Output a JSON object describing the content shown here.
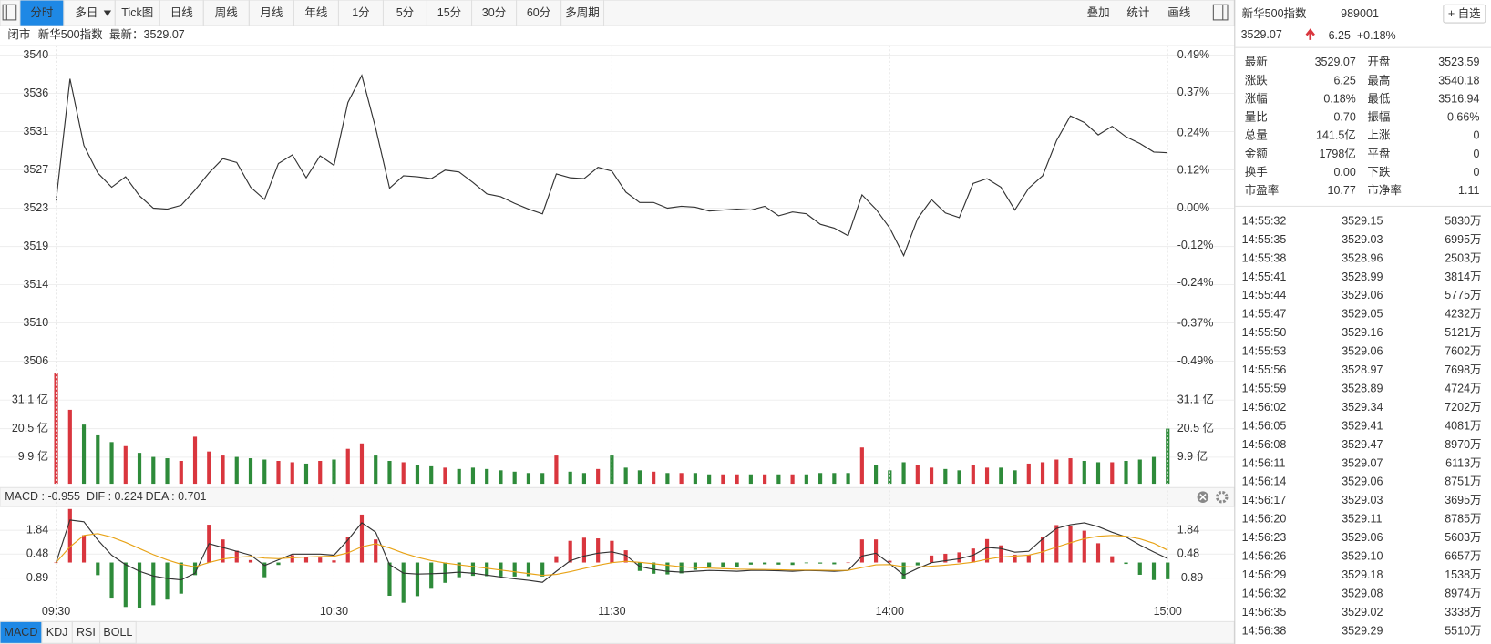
{
  "toolbar": {
    "tabs": [
      "分时",
      "多日",
      "Tick图",
      "日线",
      "周线",
      "月线",
      "年线",
      "1分",
      "5分",
      "15分",
      "30分",
      "60分",
      "多周期"
    ],
    "tools": [
      "叠加",
      "统计",
      "画线"
    ]
  },
  "status": [
    "闭市",
    "新华500指数",
    "最新：3529.07"
  ],
  "indicator_tabs": [
    "MACD",
    "KDJ",
    "RSI",
    "BOLL"
  ],
  "chart_data": [
    {
      "type": "line",
      "xlim": [
        0,
        240
      ],
      "ylim": [
        3505.56,
        3540.08
      ],
      "y2lim": [
        -0.49,
        0.49
      ],
      "yticks": [
        {
          "value": 3505.56,
          "label": "3506"
        },
        {
          "value": 3509.87,
          "label": "3510"
        },
        {
          "value": 3514.19,
          "label": "3514"
        },
        {
          "value": 3518.5,
          "label": "3519"
        },
        {
          "value": 3522.82,
          "label": "3523"
        },
        {
          "value": 3527.14,
          "label": "3527"
        },
        {
          "value": 3531.45,
          "label": "3531"
        },
        {
          "value": 3535.77,
          "label": "3536"
        },
        {
          "value": 3540.08,
          "label": "3540"
        }
      ],
      "y2ticks": [
        {
          "value": -0.49,
          "label": "-0.49%"
        },
        {
          "value": -0.37,
          "label": "-0.37%"
        },
        {
          "value": -0.24,
          "label": "-0.24%"
        },
        {
          "value": -0.12,
          "label": "-0.12%"
        },
        {
          "value": 0,
          "label": "0.00%"
        },
        {
          "value": 0.12,
          "label": "0.12%"
        },
        {
          "value": 0.24,
          "label": "0.24%"
        },
        {
          "value": 0.37,
          "label": "0.37%"
        },
        {
          "value": 0.49,
          "label": "0.49%"
        }
      ],
      "colors": {
        "up": "#d9363e",
        "down": "#2e8b3a"
      },
      "grid": true,
      "x": [
        0,
        3,
        6,
        9,
        12,
        15,
        18,
        21,
        24,
        27,
        30,
        33,
        36,
        39,
        42,
        45,
        48,
        51,
        54,
        57,
        60,
        63,
        66,
        69,
        72,
        75,
        78,
        81,
        84,
        87,
        90,
        93,
        96,
        99,
        102,
        105,
        108,
        111,
        114,
        117,
        120,
        123,
        126,
        129,
        132,
        135,
        138,
        141,
        144,
        147,
        150,
        153,
        156,
        159,
        162,
        165,
        168,
        171,
        174,
        177,
        180,
        183,
        186,
        189,
        192,
        195,
        198,
        201,
        204,
        207,
        210,
        213,
        216,
        219,
        222,
        225,
        228,
        231,
        234,
        237,
        240
      ],
      "series": [
        {
          "color": "#333333",
          "values": [
            3523.68,
            3537.41,
            3529.9,
            3526.79,
            3525.18,
            3526.36,
            3524.21,
            3522.82,
            3522.71,
            3523.14,
            3524.86,
            3526.79,
            3528.4,
            3527.97,
            3525.18,
            3523.79,
            3527.86,
            3528.83,
            3526.25,
            3528.72,
            3527.65,
            3534.73,
            3537.8,
            3531.83,
            3525.07,
            3526.47,
            3526.36,
            3526.15,
            3527.11,
            3526.9,
            3525.72,
            3524.43,
            3524.11,
            3523.36,
            3522.71,
            3522.18,
            3526.68,
            3526.25,
            3526.15,
            3527.43,
            3527.0,
            3524.64,
            3523.46,
            3523.46,
            3522.82,
            3523.03,
            3522.93,
            3522.5,
            3522.61,
            3522.71,
            3522.61,
            3523.03,
            3521.96,
            3522.39,
            3522.18,
            3521.0,
            3520.57,
            3519.71,
            3524.32,
            3522.71,
            3520.57,
            3517.46,
            3521.64,
            3523.79,
            3522.28,
            3521.75,
            3525.61,
            3526.15,
            3525.18,
            3522.61,
            3525.07,
            3526.47,
            3530.44,
            3533.23,
            3532.48,
            3531.08,
            3532.05,
            3530.87,
            3530.12,
            3529.15,
            3529.07
          ]
        }
      ]
    },
    {
      "type": "bar",
      "xlim": [
        0,
        240
      ],
      "ylim": [
        0,
        41
      ],
      "yticks": [
        {
          "value": 9.9,
          "label": "9.9 亿"
        },
        {
          "value": 20.5,
          "label": "20.5 亿"
        },
        {
          "value": 31.1,
          "label": "31.1 亿"
        }
      ],
      "colors": {
        "up": "#d9363e",
        "down": "#2e8b3a"
      },
      "grid": true,
      "x": [
        0,
        3,
        6,
        9,
        12,
        15,
        18,
        21,
        24,
        27,
        30,
        33,
        36,
        39,
        42,
        45,
        48,
        51,
        54,
        57,
        60,
        63,
        66,
        69,
        72,
        75,
        78,
        81,
        84,
        87,
        90,
        93,
        96,
        99,
        102,
        105,
        108,
        111,
        114,
        117,
        120,
        123,
        126,
        129,
        132,
        135,
        138,
        141,
        144,
        147,
        150,
        153,
        156,
        159,
        162,
        165,
        168,
        171,
        174,
        177,
        180,
        183,
        186,
        189,
        192,
        195,
        198,
        201,
        204,
        207,
        210,
        213,
        216,
        219,
        222,
        225,
        228,
        231,
        234,
        237,
        240
      ],
      "series": [
        {
          "values": [
            41,
            27.5,
            22,
            18,
            15.5,
            14,
            11.5,
            10,
            9.5,
            8.5,
            17.5,
            12,
            10.5,
            10,
            9.5,
            9,
            8.5,
            8,
            7.5,
            8.5,
            9,
            13,
            15,
            10.5,
            8.5,
            8,
            7,
            6.5,
            6,
            5.5,
            6,
            5.5,
            5,
            4.5,
            4,
            4,
            10.5,
            4.5,
            4,
            5.5,
            10.5,
            6,
            5,
            4.5,
            4,
            4,
            4,
            3.5,
            3.5,
            3.5,
            3.5,
            3.5,
            3.5,
            3.5,
            3.5,
            4,
            4,
            4,
            13.5,
            7,
            5,
            8,
            7,
            6,
            5.5,
            5,
            7,
            6,
            6,
            5,
            7.5,
            8,
            9,
            9.5,
            8.5,
            8,
            8,
            8.5,
            9,
            10,
            20.5
          ]
        }
      ]
    },
    {
      "type": "line",
      "xlim": [
        0,
        240
      ],
      "ylim": [
        -3.16,
        3.09
      ],
      "yticks": [
        -0.89,
        0.48,
        1.84
      ],
      "xticks": [
        {
          "value": 0,
          "label": "09:30"
        },
        {
          "value": 60,
          "label": "10:30"
        },
        {
          "value": 120,
          "label": "11:30"
        },
        {
          "value": 180,
          "label": "14:00"
        },
        {
          "value": 240,
          "label": "15:00"
        }
      ],
      "colors": {
        "up": "#d9363e",
        "down": "#2e8b3a"
      },
      "grid": true,
      "x": [
        0,
        3,
        6,
        9,
        12,
        15,
        18,
        21,
        24,
        27,
        30,
        33,
        36,
        39,
        42,
        45,
        48,
        51,
        54,
        57,
        60,
        63,
        66,
        69,
        72,
        75,
        78,
        81,
        84,
        87,
        90,
        93,
        96,
        99,
        102,
        105,
        108,
        111,
        114,
        117,
        120,
        123,
        126,
        129,
        132,
        135,
        138,
        141,
        144,
        147,
        150,
        153,
        156,
        159,
        162,
        165,
        168,
        171,
        174,
        177,
        180,
        183,
        186,
        189,
        192,
        195,
        198,
        201,
        204,
        207,
        210,
        213,
        216,
        219,
        222,
        225,
        228,
        231,
        234,
        237,
        240
      ],
      "series": [
        {
          "type": "bar",
          "legend": "MACD : -0.955",
          "color": "#e03bd6",
          "values": [
            0,
            3.06,
            1.56,
            -0.72,
            -2.06,
            -2.54,
            -2.6,
            -2.44,
            -2.12,
            -1.78,
            -0.72,
            2.16,
            1.32,
            0.68,
            0.14,
            -0.84,
            -0.14,
            0.42,
            0.34,
            0.28,
            0.12,
            1.48,
            2.74,
            1.32,
            -1.9,
            -2.3,
            -1.92,
            -1.5,
            -1.16,
            -0.84,
            -0.76,
            -0.78,
            -0.8,
            -0.8,
            -0.78,
            -0.8,
            0.36,
            1.24,
            1.42,
            1.38,
            1.24,
            0.7,
            -0.48,
            -0.64,
            -0.68,
            -0.62,
            -0.42,
            -0.26,
            -0.24,
            -0.24,
            -0.12,
            -0.1,
            -0.12,
            -0.14,
            -0.04,
            -0.06,
            -0.1,
            0,
            1.32,
            1.32,
            0.1,
            -0.96,
            -0.16,
            0.4,
            0.5,
            0.58,
            0.8,
            1.34,
            0.98,
            0.44,
            0.44,
            1.48,
            2.14,
            2.06,
            1.82,
            1.1,
            0.36,
            -0.08,
            -0.7,
            -1.0,
            -0.955
          ]
        },
        {
          "type": "line",
          "legend": "DIF : 0.224",
          "color": "#333333",
          "values": [
            0,
            2.43,
            2.33,
            1.29,
            0.42,
            -0.12,
            -0.5,
            -0.77,
            -0.91,
            -0.99,
            -0.61,
            1.08,
            0.86,
            0.64,
            0.42,
            -0.17,
            0.15,
            0.48,
            0.48,
            0.48,
            0.42,
            1.29,
            2.27,
            1.73,
            -0.12,
            -0.61,
            -0.66,
            -0.64,
            -0.61,
            -0.55,
            -0.61,
            -0.72,
            -0.83,
            -0.93,
            -1.02,
            -1.13,
            -0.5,
            0.1,
            0.37,
            0.53,
            0.61,
            0.42,
            -0.23,
            -0.39,
            -0.5,
            -0.55,
            -0.5,
            -0.45,
            -0.47,
            -0.5,
            -0.45,
            -0.45,
            -0.47,
            -0.5,
            -0.45,
            -0.47,
            -0.5,
            -0.45,
            0.37,
            0.53,
            -0.07,
            -0.72,
            -0.34,
            -0.01,
            0.1,
            0.21,
            0.42,
            0.86,
            0.8,
            0.59,
            0.64,
            1.35,
            1.95,
            2.16,
            2.27,
            2.05,
            1.73,
            1.46,
            1.0,
            0.6,
            0.224
          ]
        },
        {
          "type": "line",
          "legend": "DEA : 0.701",
          "color": "#e8a317",
          "values": [
            0,
            0.9,
            1.55,
            1.65,
            1.45,
            1.15,
            0.8,
            0.45,
            0.15,
            -0.1,
            -0.25,
            0,
            0.2,
            0.3,
            0.35,
            0.25,
            0.22,
            0.27,
            0.31,
            0.34,
            0.36,
            0.55,
            0.9,
            1.07,
            0.83,
            0.54,
            0.3,
            0.11,
            -0.03,
            -0.13,
            -0.23,
            -0.33,
            -0.43,
            -0.53,
            -0.63,
            -0.73,
            -0.68,
            -0.52,
            -0.34,
            -0.16,
            -0.01,
            0.07,
            0.01,
            -0.07,
            -0.16,
            -0.24,
            -0.29,
            -0.32,
            -0.35,
            -0.38,
            -0.39,
            -0.4,
            -0.41,
            -0.43,
            -0.43,
            -0.44,
            -0.45,
            -0.45,
            -0.29,
            -0.13,
            -0.12,
            -0.24,
            -0.26,
            -0.21,
            -0.15,
            -0.08,
            0.02,
            0.19,
            0.31,
            0.37,
            0.42,
            0.61,
            0.88,
            1.13,
            1.36,
            1.5,
            1.55,
            1.5,
            1.35,
            1.1,
            0.701
          ]
        }
      ]
    }
  ],
  "quote": {
    "name": "新华500指数",
    "code": "989001",
    "button": "+ 自选",
    "price": "3529.07",
    "change": "6.25",
    "change_pct": "+0.18%",
    "stats": [
      [
        "最新",
        "3529.07",
        "开盘",
        "3523.59"
      ],
      [
        "涨跌",
        "6.25",
        "最高",
        "3540.18"
      ],
      [
        "涨幅",
        "0.18%",
        "最低",
        "3516.94"
      ],
      [
        "量比",
        "0.70",
        "振幅",
        "0.66%"
      ],
      [
        "总量",
        "141.5亿",
        "上涨",
        "0"
      ],
      [
        "金额",
        "1798亿",
        "平盘",
        "0"
      ],
      [
        "换手",
        "0.00",
        "下跌",
        "0"
      ],
      [
        "市盈率",
        "10.77",
        "市净率",
        "1.11"
      ]
    ],
    "ticks": [
      [
        "14:55:32",
        "3529.15",
        "5830万"
      ],
      [
        "14:55:35",
        "3529.03",
        "6995万"
      ],
      [
        "14:55:38",
        "3528.96",
        "2503万"
      ],
      [
        "14:55:41",
        "3528.99",
        "3814万"
      ],
      [
        "14:55:44",
        "3529.06",
        "5775万"
      ],
      [
        "14:55:47",
        "3529.05",
        "4232万"
      ],
      [
        "14:55:50",
        "3529.16",
        "5121万"
      ],
      [
        "14:55:53",
        "3529.06",
        "7602万"
      ],
      [
        "14:55:56",
        "3528.97",
        "7698万"
      ],
      [
        "14:55:59",
        "3528.89",
        "4724万"
      ],
      [
        "14:56:02",
        "3529.34",
        "7202万"
      ],
      [
        "14:56:05",
        "3529.41",
        "4081万"
      ],
      [
        "14:56:08",
        "3529.47",
        "8970万"
      ],
      [
        "14:56:11",
        "3529.07",
        "6113万"
      ],
      [
        "14:56:14",
        "3529.06",
        "8751万"
      ],
      [
        "14:56:17",
        "3529.03",
        "3695万"
      ],
      [
        "14:56:20",
        "3529.11",
        "8785万"
      ],
      [
        "14:56:23",
        "3529.06",
        "5603万"
      ],
      [
        "14:56:26",
        "3529.10",
        "6657万"
      ],
      [
        "14:56:29",
        "3529.18",
        "1538万"
      ],
      [
        "14:56:32",
        "3529.08",
        "8974万"
      ],
      [
        "14:56:35",
        "3529.02",
        "3338万"
      ],
      [
        "14:56:38",
        "3529.29",
        "5510万"
      ]
    ]
  }
}
